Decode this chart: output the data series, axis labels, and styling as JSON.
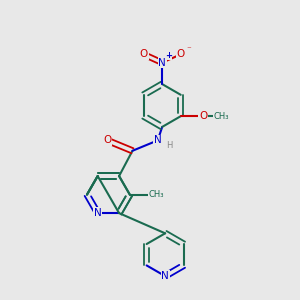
{
  "bg_color": "#e8e8e8",
  "bond_color": "#1a6b50",
  "N_color": "#0000cc",
  "O_color": "#cc0000",
  "H_color": "#888888",
  "bond_lw": 1.5,
  "double_lw": 1.3,
  "figsize": [
    3.0,
    3.0
  ],
  "dpi": 100,
  "xlim": [
    0,
    10
  ],
  "ylim": [
    0,
    10
  ]
}
